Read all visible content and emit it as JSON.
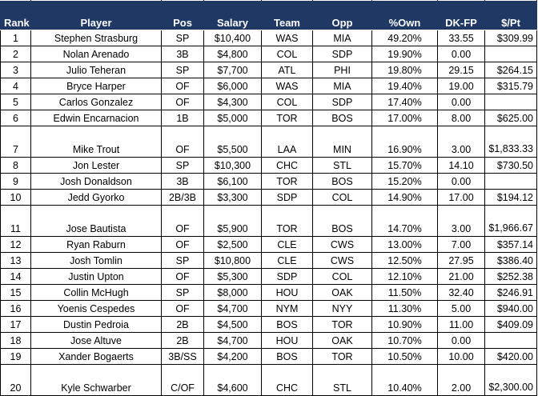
{
  "table": {
    "headers": {
      "rank": "Rank",
      "player": "Player",
      "pos": "Pos",
      "salary": "Salary",
      "team": "Team",
      "opp": "Opp",
      "own": "%Own",
      "dkfp": "DK-FP",
      "ppt": "$/Pt"
    },
    "rows": [
      {
        "rank": "1",
        "player": "Stephen Strasburg",
        "pos": "SP",
        "salary": "$10,400",
        "team": "WAS",
        "opp": "MIA",
        "own": "49.20%",
        "dkfp": "33.55",
        "ppt": "$309.99"
      },
      {
        "rank": "2",
        "player": "Nolan Arenado",
        "pos": "3B",
        "salary": "$4,800",
        "team": "COL",
        "opp": "SDP",
        "own": "19.90%",
        "dkfp": "0.00",
        "ppt": ""
      },
      {
        "rank": "3",
        "player": "Julio Teheran",
        "pos": "SP",
        "salary": "$7,700",
        "team": "ATL",
        "opp": "PHI",
        "own": "19.80%",
        "dkfp": "29.15",
        "ppt": "$264.15"
      },
      {
        "rank": "4",
        "player": "Bryce Harper",
        "pos": "OF",
        "salary": "$6,000",
        "team": "WAS",
        "opp": "MIA",
        "own": "19.40%",
        "dkfp": "19.00",
        "ppt": "$315.79"
      },
      {
        "rank": "5",
        "player": "Carlos Gonzalez",
        "pos": "OF",
        "salary": "$4,300",
        "team": "COL",
        "opp": "SDP",
        "own": "17.40%",
        "dkfp": "0.00",
        "ppt": ""
      },
      {
        "rank": "6",
        "player": "Edwin Encarnacion",
        "pos": "1B",
        "salary": "$5,000",
        "team": "TOR",
        "opp": "BOS",
        "own": "17.00%",
        "dkfp": "8.00",
        "ppt": "$625.00"
      },
      {
        "rank": "7",
        "player": "Mike Trout",
        "pos": "OF",
        "salary": "$5,500",
        "team": "LAA",
        "opp": "MIN",
        "own": "16.90%",
        "dkfp": "3.00",
        "ppt": "$1,833.33"
      },
      {
        "rank": "8",
        "player": "Jon Lester",
        "pos": "SP",
        "salary": "$10,300",
        "team": "CHC",
        "opp": "STL",
        "own": "15.70%",
        "dkfp": "14.10",
        "ppt": "$730.50"
      },
      {
        "rank": "9",
        "player": "Josh Donaldson",
        "pos": "3B",
        "salary": "$6,100",
        "team": "TOR",
        "opp": "BOS",
        "own": "15.20%",
        "dkfp": "0.00",
        "ppt": ""
      },
      {
        "rank": "10",
        "player": "Jedd Gyorko",
        "pos": "2B/3B",
        "salary": "$3,300",
        "team": "SDP",
        "opp": "COL",
        "own": "14.90%",
        "dkfp": "17.00",
        "ppt": "$194.12"
      },
      {
        "rank": "11",
        "player": "Jose Bautista",
        "pos": "OF",
        "salary": "$5,900",
        "team": "TOR",
        "opp": "BOS",
        "own": "14.70%",
        "dkfp": "3.00",
        "ppt": "$1,966.67"
      },
      {
        "rank": "12",
        "player": "Ryan Raburn",
        "pos": "OF",
        "salary": "$2,500",
        "team": "CLE",
        "opp": "CWS",
        "own": "13.00%",
        "dkfp": "7.00",
        "ppt": "$357.14"
      },
      {
        "rank": "13",
        "player": "Josh Tomlin",
        "pos": "SP",
        "salary": "$10,800",
        "team": "CLE",
        "opp": "CWS",
        "own": "12.50%",
        "dkfp": "27.95",
        "ppt": "$386.40"
      },
      {
        "rank": "14",
        "player": "Justin Upton",
        "pos": "OF",
        "salary": "$5,300",
        "team": "SDP",
        "opp": "COL",
        "own": "12.10%",
        "dkfp": "21.00",
        "ppt": "$252.38"
      },
      {
        "rank": "15",
        "player": "Collin McHugh",
        "pos": "SP",
        "salary": "$8,000",
        "team": "HOU",
        "opp": "OAK",
        "own": "11.50%",
        "dkfp": "32.40",
        "ppt": "$246.91"
      },
      {
        "rank": "16",
        "player": "Yoenis Cespedes",
        "pos": "OF",
        "salary": "$4,700",
        "team": "NYM",
        "opp": "NYY",
        "own": "11.30%",
        "dkfp": "5.00",
        "ppt": "$940.00"
      },
      {
        "rank": "17",
        "player": "Dustin Pedroia",
        "pos": "2B",
        "salary": "$4,500",
        "team": "BOS",
        "opp": "TOR",
        "own": "10.90%",
        "dkfp": "11.00",
        "ppt": "$409.09"
      },
      {
        "rank": "18",
        "player": "Jose Altuve",
        "pos": "2B",
        "salary": "$4,700",
        "team": "HOU",
        "opp": "OAK",
        "own": "10.70%",
        "dkfp": "0.00",
        "ppt": ""
      },
      {
        "rank": "19",
        "player": "Xander Bogaerts",
        "pos": "3B/SS",
        "salary": "$4,200",
        "team": "BOS",
        "opp": "TOR",
        "own": "10.50%",
        "dkfp": "10.00",
        "ppt": "$420.00"
      },
      {
        "rank": "20",
        "player": "Kyle Schwarber",
        "pos": "C/OF",
        "salary": "$4,600",
        "team": "CHC",
        "opp": "STL",
        "own": "10.40%",
        "dkfp": "2.00",
        "ppt": "$2,300.00"
      }
    ]
  }
}
